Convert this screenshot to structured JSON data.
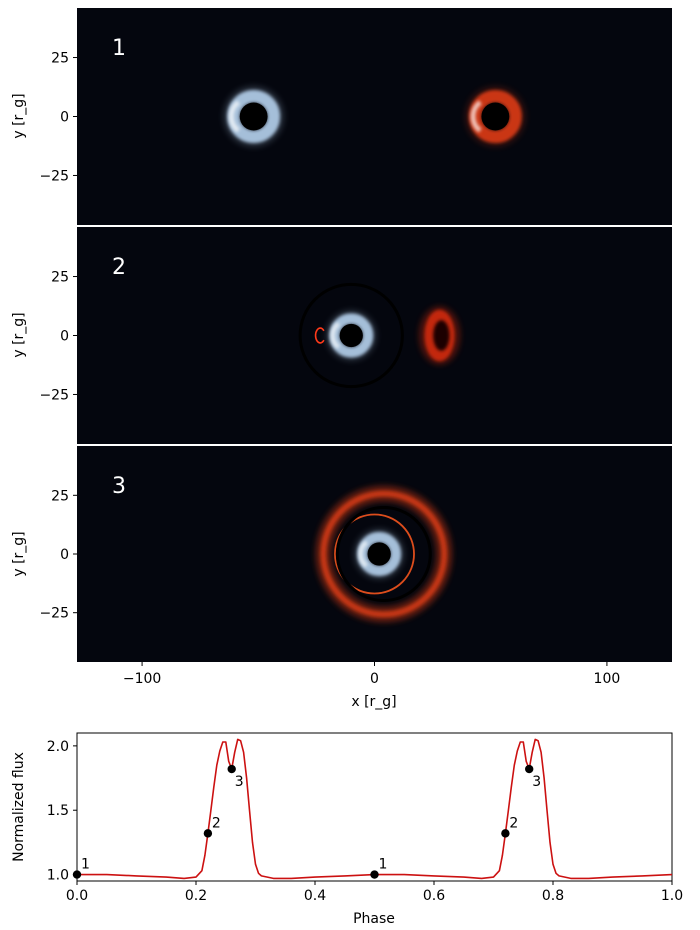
{
  "chart_data": [
    {
      "type": "heatmap",
      "label": "1",
      "ylabel": "y [r_g]",
      "yticks": [
        25,
        0,
        -25
      ],
      "xlim": [
        -128,
        128
      ],
      "ylim": [
        -46,
        46
      ],
      "features": [
        {
          "kind": "glow-ring",
          "cx": -52,
          "cy": 0,
          "r": 6,
          "color": "#bcd9f6",
          "hot_side": "left"
        },
        {
          "kind": "glow-ring",
          "cx": 52,
          "cy": 0,
          "r": 6,
          "color": "#e63c12",
          "hot_side": "left"
        }
      ]
    },
    {
      "type": "heatmap",
      "label": "2",
      "ylabel": "y [r_g]",
      "yticks": [
        25,
        0,
        -25
      ],
      "xlim": [
        -128,
        128
      ],
      "ylim": [
        -46,
        46
      ],
      "features": [
        {
          "kind": "dark-ring",
          "cx": -10,
          "cy": 0,
          "r": 22
        },
        {
          "kind": "glow-ring",
          "cx": -10,
          "cy": 0,
          "r": 5,
          "color": "#bcd9f6",
          "hot_side": "left"
        },
        {
          "kind": "crescent",
          "cx": 28,
          "cy": 0,
          "rx": 5,
          "ry": 11,
          "color": "#d02a0a"
        },
        {
          "kind": "arc",
          "cx": -23,
          "cy": 0,
          "r": 2,
          "color": "#ff3a1a"
        }
      ]
    },
    {
      "type": "heatmap",
      "label": "3",
      "ylabel": "y [r_g]",
      "yticks": [
        25,
        0,
        -25
      ],
      "xlabel": "x [r_g]",
      "xticks": [
        -100,
        0,
        100
      ],
      "xlim": [
        -128,
        128
      ],
      "ylim": [
        -46,
        46
      ],
      "features": [
        {
          "kind": "einstein-ring",
          "cx": 4,
          "cy": 0,
          "r": 26,
          "color": "#d43a12"
        },
        {
          "kind": "thin-ring",
          "cx": 0,
          "cy": 0,
          "r": 17,
          "color": "#e8511e"
        },
        {
          "kind": "dark-ring",
          "cx": 4,
          "cy": 0,
          "r": 20
        },
        {
          "kind": "glow-ring",
          "cx": 2,
          "cy": 0,
          "r": 5,
          "color": "#bcd9f6",
          "hot_side": "left"
        }
      ]
    },
    {
      "type": "line",
      "xlabel": "Phase",
      "ylabel": "Normalized flux",
      "xlim": [
        0,
        1
      ],
      "ylim": [
        0.95,
        2.1
      ],
      "xticks": [
        "0.0",
        "0.2",
        "0.4",
        "0.6",
        "0.8",
        "1.0"
      ],
      "yticks": [
        "1.0",
        "1.5",
        "2.0"
      ],
      "line_color": "#cc1111",
      "series": [
        {
          "x": [
            0.0,
            0.05,
            0.1,
            0.15,
            0.18,
            0.2,
            0.21,
            0.215,
            0.22,
            0.225,
            0.23,
            0.235,
            0.24,
            0.245,
            0.25,
            0.255,
            0.26,
            0.265,
            0.27,
            0.275,
            0.28,
            0.285,
            0.29,
            0.295,
            0.3,
            0.305,
            0.31,
            0.33,
            0.36,
            0.4,
            0.45,
            0.5,
            0.55,
            0.6,
            0.65,
            0.68,
            0.7,
            0.71,
            0.715,
            0.72,
            0.725,
            0.73,
            0.735,
            0.74,
            0.745,
            0.75,
            0.755,
            0.76,
            0.765,
            0.77,
            0.775,
            0.78,
            0.785,
            0.79,
            0.795,
            0.8,
            0.805,
            0.81,
            0.83,
            0.86,
            0.9,
            0.95,
            1.0
          ],
          "y": [
            1.0,
            1.0,
            0.99,
            0.98,
            0.97,
            0.98,
            1.03,
            1.15,
            1.32,
            1.5,
            1.68,
            1.85,
            1.96,
            2.03,
            2.03,
            1.88,
            1.82,
            1.95,
            2.05,
            2.04,
            1.95,
            1.75,
            1.5,
            1.25,
            1.08,
            1.01,
            0.99,
            0.97,
            0.97,
            0.98,
            0.99,
            1.0,
            1.0,
            0.99,
            0.98,
            0.97,
            0.98,
            1.03,
            1.15,
            1.32,
            1.5,
            1.68,
            1.85,
            1.96,
            2.03,
            2.03,
            1.88,
            1.82,
            1.95,
            2.05,
            2.04,
            1.95,
            1.75,
            1.5,
            1.25,
            1.08,
            1.01,
            0.99,
            0.97,
            0.97,
            0.98,
            0.99,
            1.0
          ]
        }
      ],
      "markers": [
        {
          "x": 0.0,
          "y": 1.0,
          "label": "1"
        },
        {
          "x": 0.22,
          "y": 1.32,
          "label": "2"
        },
        {
          "x": 0.26,
          "y": 1.82,
          "label": "3"
        },
        {
          "x": 0.5,
          "y": 1.0,
          "label": "1"
        },
        {
          "x": 0.72,
          "y": 1.32,
          "label": "2"
        },
        {
          "x": 0.76,
          "y": 1.82,
          "label": "3"
        }
      ]
    }
  ]
}
